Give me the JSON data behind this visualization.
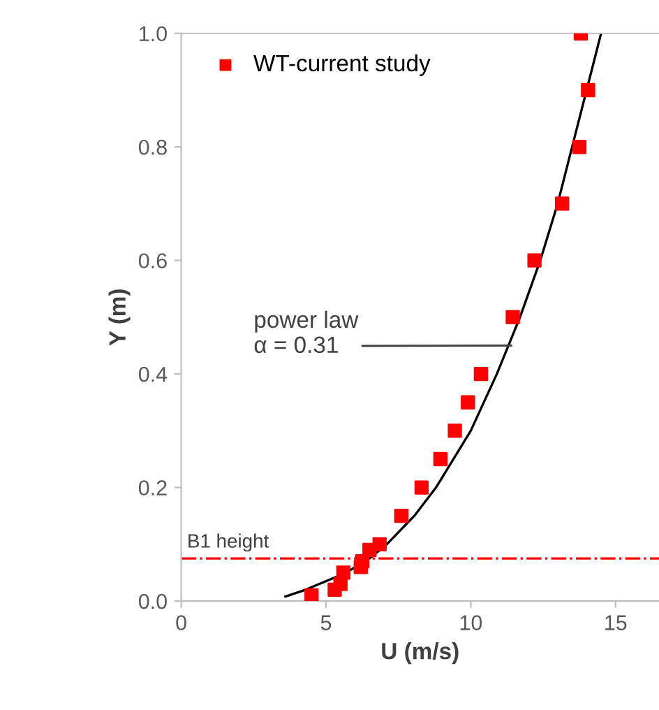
{
  "chart_data": {
    "type": "scatter",
    "xlabel": "U (m/s)",
    "ylabel": "Y (m)",
    "xlim": [
      0,
      16.5
    ],
    "xticks": [
      0,
      5,
      10,
      15
    ],
    "ylim": [
      0,
      1
    ],
    "yticks": [
      {
        "value": 0,
        "label": "0.0"
      },
      {
        "value": 0.2,
        "label": "0.2"
      },
      {
        "value": 0.4,
        "label": "0.4"
      },
      {
        "value": 0.6,
        "label": "0.6"
      },
      {
        "value": 0.8,
        "label": "0.8"
      },
      {
        "value": 1,
        "label": "1.0"
      }
    ],
    "grid": false,
    "legend": "top left",
    "series": [
      {
        "name": "WT-current study",
        "color": "#ff0000",
        "marker": "square",
        "x": [
          4.5,
          5.3,
          5.5,
          5.6,
          6.2,
          6.25,
          6.5,
          6.85,
          7.6,
          8.3,
          8.95,
          9.45,
          9.9,
          10.35,
          11.45,
          12.2,
          13.15,
          13.75,
          14.05,
          13.8
        ],
        "values": [
          0.01,
          0.02,
          0.03,
          0.05,
          0.06,
          0.07,
          0.09,
          0.1,
          0.15,
          0.2,
          0.25,
          0.3,
          0.35,
          0.4,
          0.5,
          0.6,
          0.7,
          0.8,
          0.9,
          1.0
        ]
      },
      {
        "type": "line",
        "color": "#000000",
        "line_style": "solid",
        "x": [
          3.6,
          4.3,
          5.7,
          6.5,
          7.1,
          8.05,
          8.8,
          10.0,
          10.9,
          11.7,
          12.4,
          13.0,
          13.5,
          14.0,
          14.5
        ],
        "values": [
          0.008,
          0.02,
          0.05,
          0.075,
          0.1,
          0.15,
          0.2,
          0.3,
          0.4,
          0.5,
          0.6,
          0.7,
          0.8,
          0.9,
          1.0
        ]
      }
    ],
    "ref_lines": [
      {
        "axis": "y",
        "value": 0.075,
        "label": "B1 height",
        "color": "#ff0000",
        "line_style": "dashdot"
      }
    ],
    "annotations": [
      {
        "text": "power law\nα = 0.31",
        "x": 11.4,
        "y": 0.45
      }
    ]
  }
}
